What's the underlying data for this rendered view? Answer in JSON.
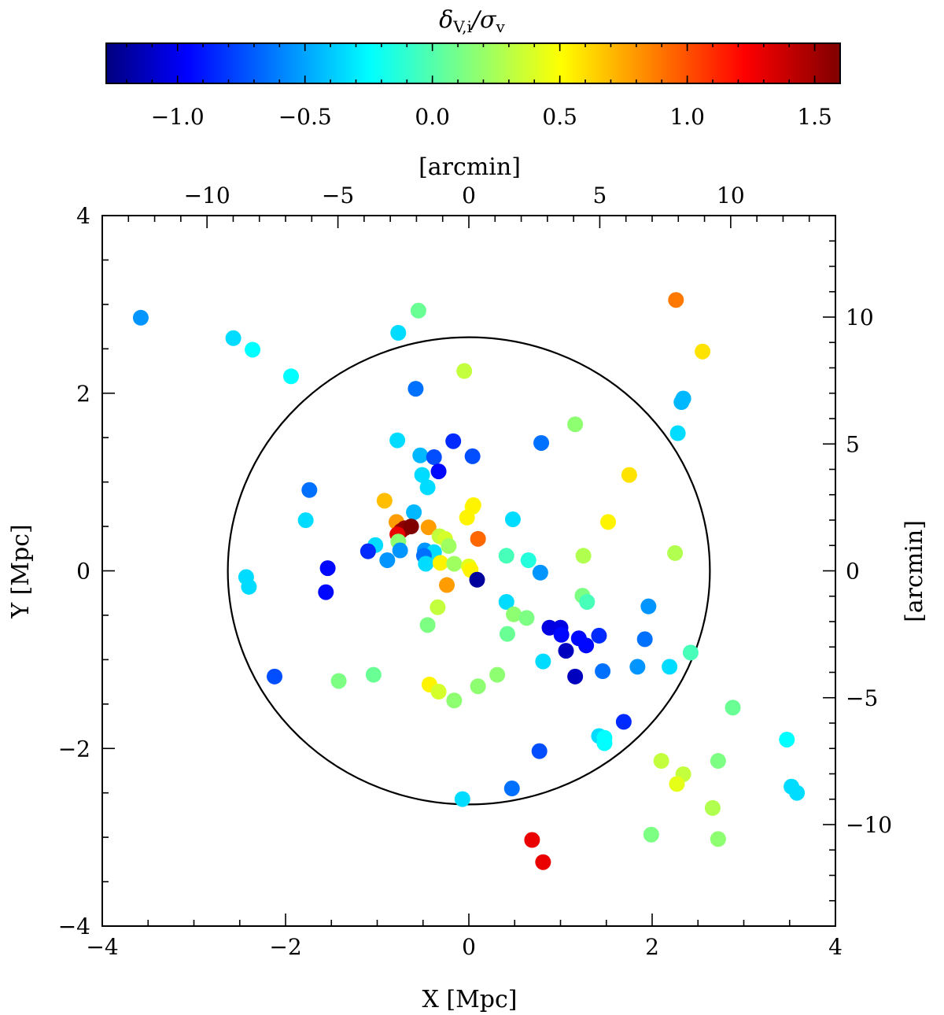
{
  "chart_data": {
    "type": "scatter",
    "xlabel": "X [Mpc]",
    "ylabel": "Y [Mpc]",
    "x2label": "[arcmin]",
    "y2label": "[arcmin]",
    "xlim": [
      -4,
      4
    ],
    "ylim": [
      -4,
      4
    ],
    "arcmin_per_mpc": 3.5,
    "x_ticks": [
      "−4",
      "−2",
      "0",
      "2",
      "4"
    ],
    "y_ticks": [
      "−4",
      "−2",
      "0",
      "2",
      "4"
    ],
    "x2_ticks": [
      "−10",
      "−5",
      "0",
      "5",
      "10"
    ],
    "y2_ticks": [
      "−10",
      "−5",
      "0",
      "5",
      "10"
    ],
    "colorbar": {
      "label": "δV,i/σv",
      "label_main": "δ",
      "label_sub": "V,i",
      "label_sep": "/σ",
      "label_sub2": "v",
      "range": [
        -1.28,
        1.6
      ],
      "ticks": [
        "−1.0",
        "−0.5",
        "0.0",
        "0.5",
        "1.0",
        "1.5"
      ],
      "tick_values": [
        -1.0,
        -0.5,
        0.0,
        0.5,
        1.0,
        1.5
      ]
    },
    "circle": {
      "center": [
        0,
        0
      ],
      "radius": 2.63
    },
    "points": [
      [
        -3.58,
        2.85,
        -0.5
      ],
      [
        -2.57,
        2.62,
        -0.3
      ],
      [
        -2.36,
        2.49,
        -0.2
      ],
      [
        -1.94,
        2.19,
        -0.2
      ],
      [
        -0.55,
        2.93,
        0.1
      ],
      [
        -0.77,
        2.68,
        -0.3
      ],
      [
        2.26,
        3.05,
        0.9
      ],
      [
        2.55,
        2.47,
        0.6
      ],
      [
        -0.05,
        2.25,
        0.35
      ],
      [
        -0.58,
        2.05,
        -0.6
      ],
      [
        2.32,
        1.9,
        -0.4
      ],
      [
        2.34,
        1.94,
        -0.4
      ],
      [
        2.28,
        1.55,
        -0.3
      ],
      [
        1.16,
        1.65,
        0.2
      ],
      [
        -0.78,
        1.47,
        -0.3
      ],
      [
        -0.17,
        1.46,
        -0.8
      ],
      [
        0.79,
        1.44,
        -0.6
      ],
      [
        -0.53,
        1.3,
        -0.4
      ],
      [
        -0.38,
        1.28,
        -0.7
      ],
      [
        0.04,
        1.29,
        -0.7
      ],
      [
        -0.33,
        1.12,
        -0.9
      ],
      [
        -0.51,
        1.08,
        -0.3
      ],
      [
        1.75,
        1.08,
        0.6
      ],
      [
        -0.45,
        0.94,
        -0.3
      ],
      [
        -1.74,
        0.91,
        -0.6
      ],
      [
        -0.92,
        0.79,
        0.7
      ],
      [
        0.04,
        0.72,
        0.5
      ],
      [
        0.05,
        0.74,
        0.55
      ],
      [
        -0.6,
        0.66,
        -0.4
      ],
      [
        -0.02,
        0.6,
        0.55
      ],
      [
        -1.78,
        0.57,
        -0.3
      ],
      [
        0.48,
        0.58,
        -0.3
      ],
      [
        1.52,
        0.55,
        0.55
      ],
      [
        -0.79,
        0.55,
        0.8
      ],
      [
        -0.74,
        0.45,
        1.45
      ],
      [
        -0.7,
        0.48,
        1.55
      ],
      [
        -0.63,
        0.5,
        1.6
      ],
      [
        -0.78,
        0.41,
        1.3
      ],
      [
        -0.44,
        0.49,
        0.8
      ],
      [
        0.1,
        0.36,
        0.95
      ],
      [
        -0.32,
        0.39,
        0.35
      ],
      [
        -0.26,
        0.36,
        0.4
      ],
      [
        -0.77,
        0.33,
        0.2
      ],
      [
        -0.22,
        0.28,
        0.25
      ],
      [
        -1.02,
        0.29,
        -0.3
      ],
      [
        -1.1,
        0.22,
        -0.8
      ],
      [
        -0.75,
        0.23,
        -0.5
      ],
      [
        -0.48,
        0.23,
        -0.5
      ],
      [
        -0.38,
        0.21,
        -0.3
      ],
      [
        -0.49,
        0.17,
        -0.6
      ],
      [
        0.41,
        0.17,
        0.0
      ],
      [
        0.65,
        0.12,
        -0.1
      ],
      [
        -0.89,
        0.12,
        -0.5
      ],
      [
        -0.47,
        0.08,
        -0.3
      ],
      [
        -0.31,
        0.09,
        0.55
      ],
      [
        -0.16,
        0.08,
        0.25
      ],
      [
        0.0,
        0.05,
        0.45
      ],
      [
        0.02,
        0.01,
        0.55
      ],
      [
        1.25,
        0.17,
        0.3
      ],
      [
        2.25,
        0.2,
        0.3
      ],
      [
        -1.54,
        0.03,
        -0.9
      ],
      [
        -2.43,
        -0.07,
        -0.3
      ],
      [
        -2.4,
        -0.18,
        -0.3
      ],
      [
        0.78,
        -0.02,
        -0.5
      ],
      [
        0.09,
        -0.1,
        -1.2
      ],
      [
        -1.56,
        -0.24,
        -0.9
      ],
      [
        -0.24,
        -0.16,
        0.8
      ],
      [
        1.24,
        -0.28,
        0.15
      ],
      [
        1.29,
        -0.35,
        0.0
      ],
      [
        0.41,
        -0.35,
        -0.3
      ],
      [
        1.96,
        -0.4,
        -0.5
      ],
      [
        -0.34,
        -0.41,
        0.35
      ],
      [
        0.49,
        -0.49,
        0.2
      ],
      [
        0.63,
        -0.53,
        0.15
      ],
      [
        -0.45,
        -0.61,
        0.15
      ],
      [
        0.88,
        -0.64,
        -1.0
      ],
      [
        1.0,
        -0.64,
        -1.0
      ],
      [
        1.01,
        -0.72,
        -0.9
      ],
      [
        1.2,
        -0.76,
        -0.9
      ],
      [
        1.42,
        -0.73,
        -0.8
      ],
      [
        0.42,
        -0.71,
        0.1
      ],
      [
        1.92,
        -0.77,
        -0.6
      ],
      [
        1.28,
        -0.84,
        -0.9
      ],
      [
        1.06,
        -0.9,
        -1.1
      ],
      [
        2.42,
        -0.92,
        0.0
      ],
      [
        0.81,
        -1.02,
        -0.3
      ],
      [
        1.84,
        -1.08,
        -0.5
      ],
      [
        2.19,
        -1.08,
        -0.3
      ],
      [
        1.46,
        -1.13,
        -0.6
      ],
      [
        -2.12,
        -1.19,
        -0.7
      ],
      [
        -1.04,
        -1.17,
        0.1
      ],
      [
        -1.42,
        -1.24,
        0.15
      ],
      [
        1.16,
        -1.19,
        -1.1
      ],
      [
        0.31,
        -1.17,
        0.2
      ],
      [
        0.1,
        -1.3,
        0.2
      ],
      [
        -0.43,
        -1.28,
        0.55
      ],
      [
        -0.33,
        -1.36,
        0.4
      ],
      [
        -0.16,
        -1.46,
        0.2
      ],
      [
        1.69,
        -1.7,
        -0.8
      ],
      [
        2.88,
        -1.54,
        0.1
      ],
      [
        1.42,
        -1.86,
        -0.3
      ],
      [
        1.48,
        -1.88,
        -0.2
      ],
      [
        1.48,
        -1.94,
        -0.2
      ],
      [
        3.47,
        -1.9,
        -0.2
      ],
      [
        0.77,
        -2.03,
        -0.7
      ],
      [
        2.1,
        -2.14,
        0.35
      ],
      [
        2.72,
        -2.14,
        0.15
      ],
      [
        2.34,
        -2.29,
        0.35
      ],
      [
        2.27,
        -2.4,
        0.45
      ],
      [
        3.52,
        -2.43,
        -0.3
      ],
      [
        3.58,
        -2.5,
        -0.3
      ],
      [
        0.47,
        -2.45,
        -0.6
      ],
      [
        -0.07,
        -2.57,
        -0.3
      ],
      [
        2.66,
        -2.67,
        0.3
      ],
      [
        1.99,
        -2.97,
        0.15
      ],
      [
        2.72,
        -3.02,
        0.2
      ],
      [
        0.69,
        -3.03,
        1.3
      ],
      [
        0.81,
        -3.28,
        1.3
      ]
    ]
  }
}
